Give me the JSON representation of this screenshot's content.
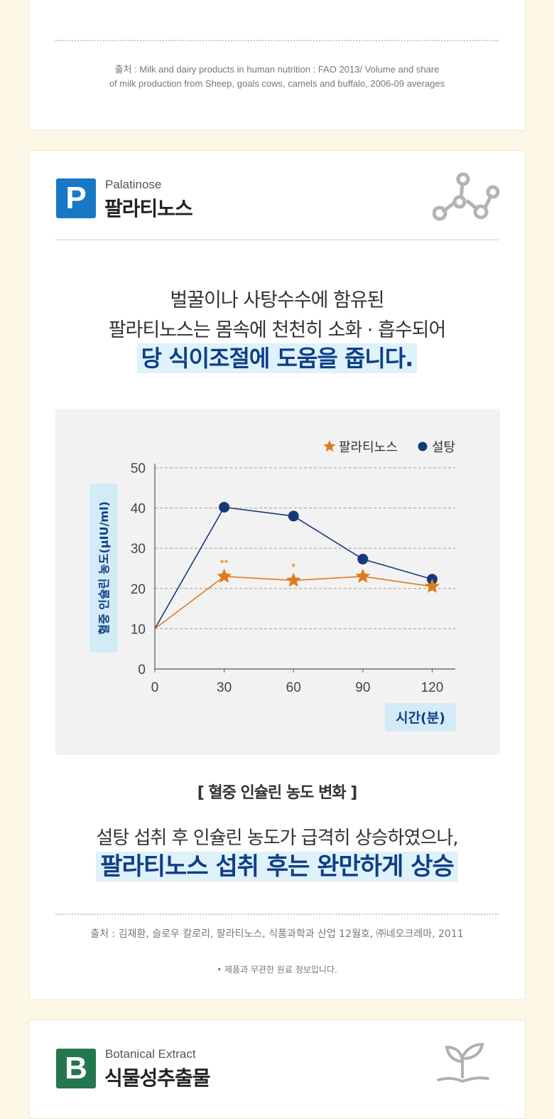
{
  "top_card": {
    "source_line1": "출처 :  Milk and dairy products in human nutrition : FAO 2013/ Volume and share",
    "source_line2": "of milk production from Sheep, goals cows, camels and buffalo, 2006-09 averages"
  },
  "palatinose": {
    "badge": "P",
    "title_en": "Palatinose",
    "title_ko": "팔라티노스",
    "icon": "molecule-icon",
    "lead_line1": "벌꿀이나 사탕수수에 함유된",
    "lead_line2": "팔라티노스는 몸속에 천천히 소화 · 흡수되어",
    "highlight": "당 식이조절에 도움을 줍니다.",
    "caption": "[ 혈중 인슐린 농도 변화 ]",
    "summary_line1": "설탕 섭취 후 인슐린 농도가 급격히 상승하였으나,",
    "summary_highlight": "팔라티노스 섭취 후는 완만하게 상승",
    "source": "출처 :  김재환, 슬로우 칼로리, 팔라티노스, 식품과학과 산업 12월호, ㈜네오크레마,  2011",
    "note": "• 제품과 무관한 원료 정보입니다."
  },
  "chart_data": {
    "type": "line",
    "ylabel": "혈중 인슐린 농도(μIU/ml)",
    "xlabel": "시간(분)",
    "x": [
      0,
      30,
      60,
      90,
      120
    ],
    "xticks": [
      "0",
      "30",
      "60",
      "90",
      "120"
    ],
    "yticks": [
      "0",
      "10",
      "20",
      "30",
      "40",
      "50"
    ],
    "xlim": [
      0,
      130
    ],
    "ylim": [
      0,
      50
    ],
    "grid": true,
    "legend": "top-right",
    "series": [
      {
        "name": "팔라티노스",
        "marker": "star",
        "color": "#e07a1f",
        "values": [
          10,
          23,
          22,
          23,
          20.5
        ]
      },
      {
        "name": "설탕",
        "marker": "circle",
        "color": "#17397a",
        "values": [
          10,
          40.2,
          38,
          27.3,
          22.3
        ]
      }
    ],
    "annotations": [
      {
        "x": 30,
        "text": "**"
      },
      {
        "x": 60,
        "text": "*"
      }
    ]
  },
  "botanical": {
    "badge": "B",
    "title_en": "Botanical Extract",
    "title_ko": "식물성추출물",
    "icon": "plant-hand-icon"
  }
}
